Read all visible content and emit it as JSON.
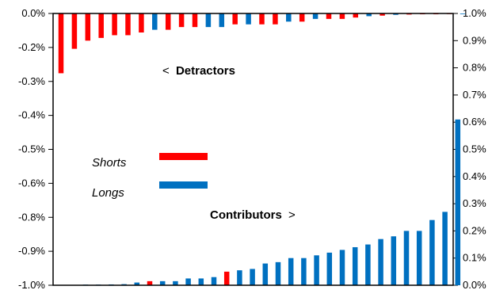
{
  "chart_data": [
    {
      "type": "bar",
      "role": "detractors",
      "y_axis": "left",
      "ylim": [
        -1.0,
        0.0
      ],
      "y_ticks": [
        "0.0%",
        "-0.2%",
        "-0.3%",
        "-0.4%",
        "-0.5%",
        "-0.6%",
        "-0.8%",
        "-0.9%",
        "-1.0%"
      ],
      "annotation": {
        "arrow": "<",
        "label": "Detractors"
      },
      "bars": [
        {
          "value": -0.22,
          "type": "short"
        },
        {
          "value": -0.13,
          "type": "short"
        },
        {
          "value": -0.1,
          "type": "short"
        },
        {
          "value": -0.09,
          "type": "short"
        },
        {
          "value": -0.08,
          "type": "short"
        },
        {
          "value": -0.08,
          "type": "short"
        },
        {
          "value": -0.07,
          "type": "short"
        },
        {
          "value": -0.06,
          "type": "long"
        },
        {
          "value": -0.06,
          "type": "short"
        },
        {
          "value": -0.05,
          "type": "short"
        },
        {
          "value": -0.05,
          "type": "short"
        },
        {
          "value": -0.05,
          "type": "long"
        },
        {
          "value": -0.05,
          "type": "long"
        },
        {
          "value": -0.04,
          "type": "short"
        },
        {
          "value": -0.04,
          "type": "long"
        },
        {
          "value": -0.04,
          "type": "short"
        },
        {
          "value": -0.04,
          "type": "short"
        },
        {
          "value": -0.03,
          "type": "long"
        },
        {
          "value": -0.03,
          "type": "short"
        },
        {
          "value": -0.02,
          "type": "long"
        },
        {
          "value": -0.02,
          "type": "short"
        },
        {
          "value": -0.02,
          "type": "short"
        },
        {
          "value": -0.015,
          "type": "short"
        },
        {
          "value": -0.01,
          "type": "long"
        },
        {
          "value": -0.008,
          "type": "short"
        },
        {
          "value": -0.005,
          "type": "long"
        },
        {
          "value": -0.004,
          "type": "short"
        },
        {
          "value": -0.003,
          "type": "short"
        },
        {
          "value": -0.003,
          "type": "short"
        },
        {
          "value": -0.002,
          "type": "short"
        },
        {
          "value": -0.002,
          "type": "long"
        }
      ]
    },
    {
      "type": "bar",
      "role": "contributors",
      "y_axis": "right",
      "ylim": [
        0.0,
        1.0
      ],
      "y_ticks": [
        "1.0%",
        "0.9%",
        "0.8%",
        "0.7%",
        "0.6%",
        "0.5%",
        "0.4%",
        "0.3%",
        "0.2%",
        "0.1%",
        "0.0%"
      ],
      "annotation": {
        "arrow": ">",
        "label": "Contributors"
      },
      "bars": [
        {
          "value": 0.001,
          "type": "long"
        },
        {
          "value": 0.002,
          "type": "long"
        },
        {
          "value": 0.003,
          "type": "long"
        },
        {
          "value": 0.004,
          "type": "long"
        },
        {
          "value": 0.01,
          "type": "long"
        },
        {
          "value": 0.015,
          "type": "short"
        },
        {
          "value": 0.015,
          "type": "long"
        },
        {
          "value": 0.015,
          "type": "long"
        },
        {
          "value": 0.025,
          "type": "long"
        },
        {
          "value": 0.025,
          "type": "long"
        },
        {
          "value": 0.03,
          "type": "long"
        },
        {
          "value": 0.05,
          "type": "short"
        },
        {
          "value": 0.055,
          "type": "long"
        },
        {
          "value": 0.06,
          "type": "long"
        },
        {
          "value": 0.08,
          "type": "long"
        },
        {
          "value": 0.085,
          "type": "long"
        },
        {
          "value": 0.1,
          "type": "long"
        },
        {
          "value": 0.1,
          "type": "long"
        },
        {
          "value": 0.11,
          "type": "long"
        },
        {
          "value": 0.12,
          "type": "long"
        },
        {
          "value": 0.13,
          "type": "long"
        },
        {
          "value": 0.14,
          "type": "long"
        },
        {
          "value": 0.15,
          "type": "long"
        },
        {
          "value": 0.17,
          "type": "long"
        },
        {
          "value": 0.18,
          "type": "long"
        },
        {
          "value": 0.2,
          "type": "long"
        },
        {
          "value": 0.2,
          "type": "long"
        },
        {
          "value": 0.24,
          "type": "long"
        },
        {
          "value": 0.27,
          "type": "long"
        },
        {
          "value": 0.61,
          "type": "long"
        }
      ]
    }
  ],
  "legend": {
    "items": [
      {
        "label": "Shorts",
        "color": "#ff0000"
      },
      {
        "label": "Longs",
        "color": "#0070c0"
      }
    ],
    "placement": "center-left"
  },
  "colors": {
    "short": "#ff0000",
    "long": "#0070c0",
    "axis": "#000000"
  }
}
